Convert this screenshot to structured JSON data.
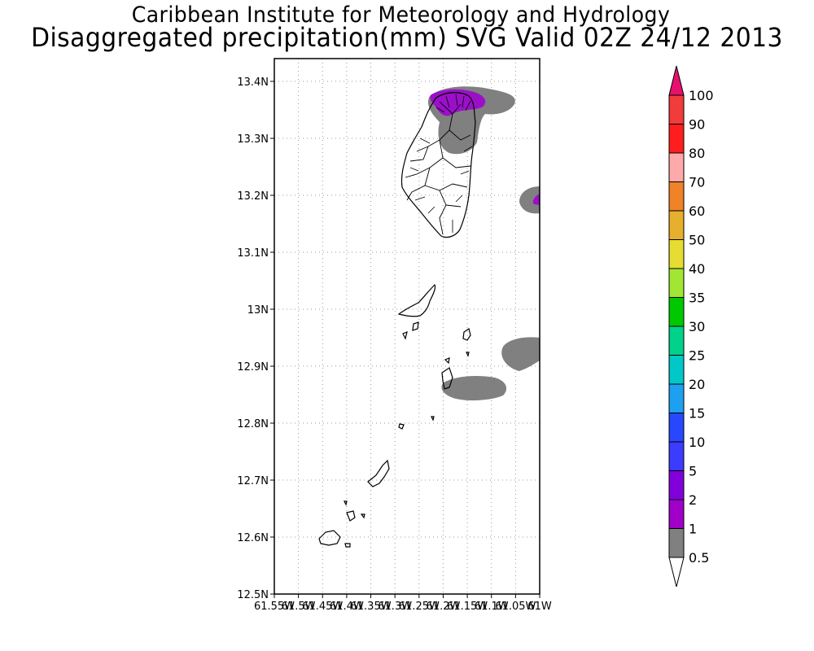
{
  "title": {
    "line1": "Caribbean Institute for Meteorology and Hydrology",
    "line2": "Disaggregated precipitation(mm) SVG Valid 02Z 24/12 2013"
  },
  "map": {
    "lat_ticks": [
      "13.4N",
      "13.3N",
      "13.2N",
      "13.1N",
      "13N",
      "12.9N",
      "12.8N",
      "12.7N",
      "12.6N",
      "12.5N"
    ],
    "lon_ticks": [
      "61.55W",
      "61.5W",
      "61.45W",
      "61.4W",
      "61.35W",
      "61.3W",
      "61.25W",
      "61.2W",
      "61.15W",
      "61.1W",
      "61.05W",
      "61W"
    ],
    "lat_range": [
      12.5,
      13.44
    ],
    "lon_range": [
      -61.55,
      -61.0
    ],
    "grid": "dotted"
  },
  "colorbar": {
    "labels": [
      "100",
      "90",
      "80",
      "70",
      "60",
      "50",
      "40",
      "35",
      "30",
      "25",
      "20",
      "15",
      "10",
      "5",
      "2",
      "1",
      "0.5"
    ],
    "colors": [
      "#e8106e",
      "#f03c3c",
      "#ff1e1e",
      "#ffaaaa",
      "#f08228",
      "#e6af2d",
      "#e6dc32",
      "#a0e632",
      "#00c800",
      "#00d28c",
      "#00c8c8",
      "#1ea0f0",
      "#2848ff",
      "#3c3cff",
      "#8200dc",
      "#a000c8",
      "#808080"
    ]
  },
  "precip_colors": {
    "light": "#808080",
    "purple": "#9a10c8"
  }
}
